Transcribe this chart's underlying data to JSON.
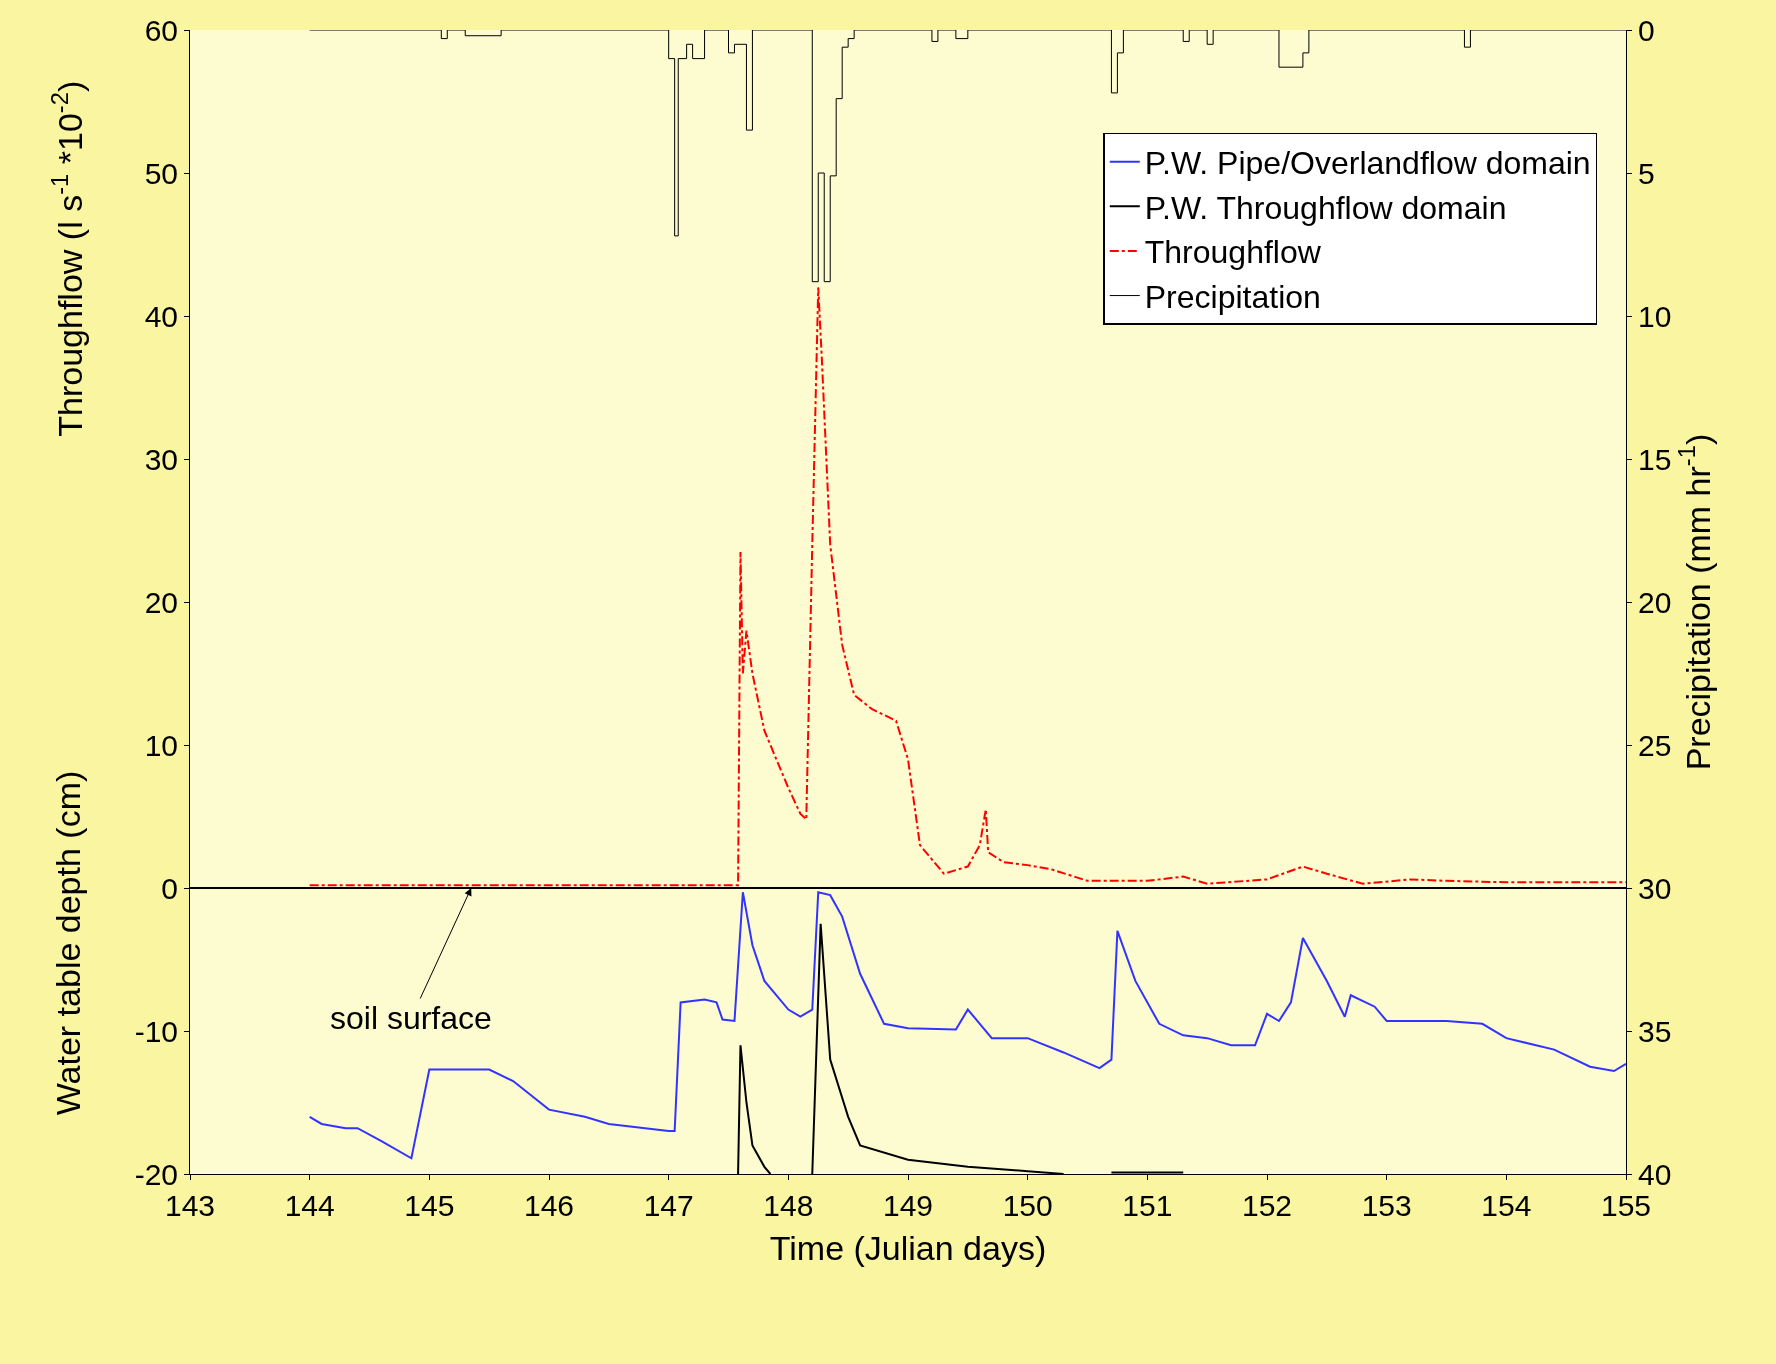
{
  "chart_data": {
    "type": "line",
    "xlabel": "Time (Julian days)",
    "ylabel": "Throughflow (l s$^{-1}$ *10$^{-2}$)",
    "y2label": "Precipitation (mm hr$^{-1}$)",
    "xlim": [
      143,
      155
    ],
    "xticks": [
      143,
      144,
      145,
      146,
      147,
      148,
      149,
      150,
      151,
      152,
      153,
      154,
      155
    ],
    "ylim": [
      -20,
      60
    ],
    "yticks": [
      -20,
      -10,
      0,
      10,
      20,
      30,
      40,
      50,
      60
    ],
    "y2lim": [
      40,
      0
    ],
    "y2ticks": [
      0,
      5,
      10,
      15,
      20,
      25,
      30,
      35,
      40
    ],
    "legend": "top right",
    "grid": false,
    "ref_lines": [
      {
        "axis": "y",
        "value": 0,
        "color": "#000000"
      }
    ],
    "annotations": [
      {
        "text": "soil surface",
        "x": 145.35,
        "y": 0
      },
      "Water table depth (cm)"
    ],
    "series": [
      {
        "name": "P.W. Pipe/Overlandflow domain",
        "color": "#3333ff",
        "line_style": "solid",
        "x": [
          144.0,
          144.1,
          144.3,
          144.4,
          144.6,
          144.85,
          145.0,
          145.5,
          145.7,
          146.0,
          146.3,
          146.5,
          147.0,
          147.05,
          147.1,
          147.3,
          147.4,
          147.45,
          147.55,
          147.62,
          147.7,
          147.8,
          148.0,
          148.1,
          148.2,
          148.25,
          148.35,
          148.45,
          148.6,
          148.8,
          149.0,
          149.4,
          149.5,
          149.6,
          149.7,
          150.0,
          150.3,
          150.6,
          150.7,
          150.75,
          150.9,
          151.1,
          151.3,
          151.5,
          151.7,
          151.9,
          152.0,
          152.1,
          152.2,
          152.3,
          152.5,
          152.65,
          152.7,
          152.9,
          153.0,
          153.5,
          153.8,
          154.0,
          154.4,
          154.7,
          154.9,
          155.0
        ],
        "values": [
          -16,
          -16.5,
          -16.8,
          -16.8,
          -17.7,
          -18.9,
          -12.7,
          -12.7,
          -13.5,
          -15.5,
          -16,
          -16.5,
          -17,
          -17,
          -8,
          -7.8,
          -8,
          -9.2,
          -9.3,
          -0.3,
          -4,
          -6.5,
          -8.5,
          -9,
          -8.5,
          -0.3,
          -0.5,
          -2,
          -6,
          -9.5,
          -9.8,
          -9.9,
          -8.5,
          -9.5,
          -10.5,
          -10.5,
          -11.5,
          -12.6,
          -12,
          -3,
          -6.5,
          -9.5,
          -10.3,
          -10.5,
          -11,
          -11,
          -8.8,
          -9.3,
          -8,
          -3.5,
          -6.5,
          -9,
          -7.5,
          -8.3,
          -9.3,
          -9.3,
          -9.5,
          -10.5,
          -11.3,
          -12.5,
          -12.8,
          -12.3
        ]
      },
      {
        "name": "P.W. Throughflow domain",
        "color": "#000000",
        "line_style": "solid",
        "x": [
          147.58,
          147.6,
          147.65,
          147.7,
          147.8,
          147.85,
          147.9,
          148.2,
          148.27,
          148.35,
          148.5,
          148.6,
          149.0,
          149.5,
          150.0,
          150.3,
          150.5,
          150.7,
          151.3
        ],
        "values": [
          -20,
          -11,
          -15,
          -18,
          -19.5,
          -20,
          null,
          -20,
          -2.5,
          -12,
          -16,
          -18,
          -19,
          -19.5,
          -19.8,
          -20,
          null,
          -19.9,
          -19.9
        ]
      },
      {
        "name": "Throughflow",
        "color": "#ff0000",
        "line_style": "dashed",
        "x": [
          144.0,
          147.35,
          147.58,
          147.6,
          147.62,
          147.65,
          147.7,
          147.8,
          148.0,
          148.1,
          148.15,
          148.2,
          148.25,
          148.28,
          148.35,
          148.45,
          148.55,
          148.7,
          148.9,
          149.0,
          149.1,
          149.3,
          149.5,
          149.6,
          149.65,
          149.67,
          149.8,
          150.0,
          150.2,
          150.5,
          151.0,
          151.3,
          151.5,
          152.0,
          152.3,
          152.5,
          152.8,
          153.2,
          153.5,
          154.0,
          155.0
        ],
        "values": [
          0.2,
          0.2,
          0.2,
          23.5,
          15,
          18,
          15,
          11,
          7,
          5.2,
          4.8,
          24,
          42,
          37,
          24,
          17,
          13.5,
          12.5,
          11.7,
          9,
          3,
          1.0,
          1.5,
          3,
          5.5,
          2.5,
          1.8,
          1.6,
          1.3,
          0.5,
          0.5,
          0.8,
          0.3,
          0.6,
          1.5,
          1,
          0.3,
          0.6,
          0.5,
          0.4,
          0.4
        ]
      },
      {
        "name": "Precipitation",
        "color": "#000000",
        "type": "step",
        "axis": "y2",
        "line_style": "solid",
        "x": [
          144.0,
          145.1,
          145.15,
          145.3,
          145.6,
          147.0,
          147.05,
          147.08,
          147.15,
          147.2,
          147.3,
          147.5,
          147.55,
          147.65,
          147.7,
          148.2,
          148.25,
          148.3,
          148.35,
          148.4,
          148.45,
          148.5,
          148.55,
          149.2,
          149.25,
          149.4,
          149.5,
          150.7,
          150.75,
          150.8,
          151.3,
          151.35,
          151.5,
          151.55,
          152.1,
          152.3,
          152.35,
          153.65,
          153.7,
          155.0
        ],
        "values": [
          0,
          0.3,
          0,
          0.2,
          0,
          1,
          7.2,
          1,
          0.5,
          1,
          0,
          0.8,
          0.5,
          3.5,
          0,
          8.8,
          5,
          8.8,
          5.1,
          2.4,
          0.6,
          0.3,
          0,
          0.4,
          0,
          0.3,
          0,
          2.2,
          0.8,
          0,
          0.4,
          0,
          0.5,
          0,
          1.3,
          0.8,
          0,
          0.6,
          0,
          0
        ]
      }
    ]
  }
}
